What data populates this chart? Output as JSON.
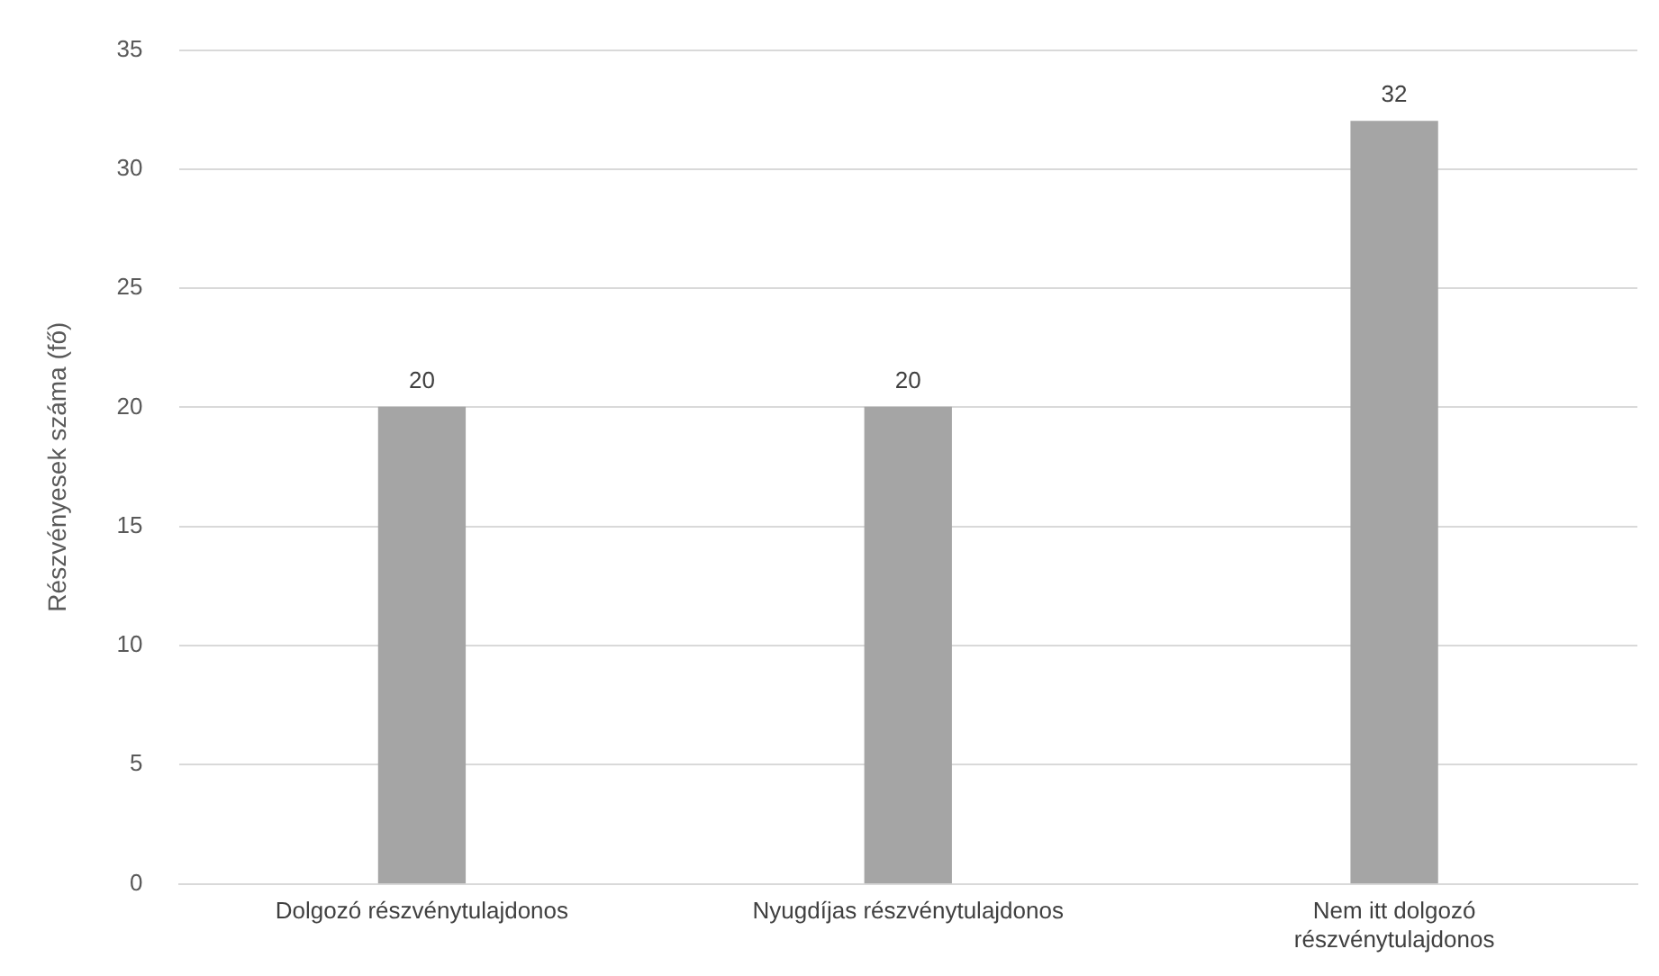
{
  "chart_data": {
    "type": "bar",
    "ylabel": "Részvényesek száma (fő)",
    "categories": [
      "Dolgozó részvénytulajdonos",
      "Nyugdíjas részvénytulajdonos",
      "Nem itt dolgozó részvénytulajdonos"
    ],
    "values": [
      20,
      20,
      32
    ],
    "color": "#a5a5a5",
    "ylim": [
      0,
      35
    ],
    "yticks": [
      0,
      5,
      10,
      15,
      20,
      25,
      30,
      35
    ],
    "grid": "y",
    "data_labels": true,
    "legend": false
  }
}
